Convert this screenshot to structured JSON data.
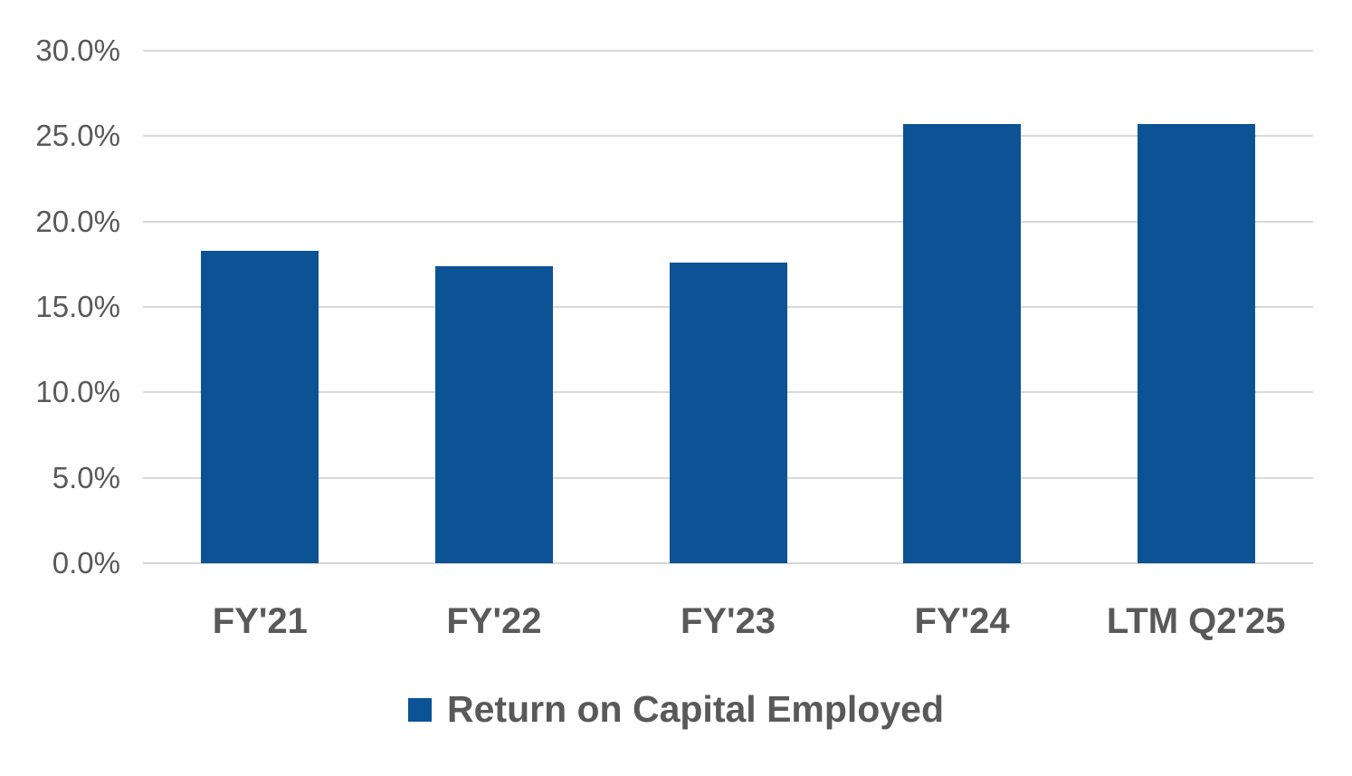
{
  "chart_data": {
    "type": "bar",
    "title": "",
    "categories": [
      "FY'21",
      "FY'22",
      "FY'23",
      "FY'24",
      "LTM Q2'25"
    ],
    "values": [
      18.3,
      17.4,
      17.6,
      25.7,
      25.7
    ],
    "unit": "%",
    "series_name": "Return on Capital Employed",
    "xlabel": "",
    "ylabel": "",
    "ylim": [
      0,
      30
    ],
    "ytick_step": 5,
    "ytick_labels": [
      "0.0%",
      "5.0%",
      "10.0%",
      "15.0%",
      "20.0%",
      "25.0%",
      "30.0%"
    ],
    "grid": true,
    "legend_position": "bottom"
  },
  "legend": {
    "label": "Return on Capital Employed"
  },
  "colors": {
    "bar": "#0B5394",
    "gridline": "#D9D9D9",
    "axis_line": "#D6D6D6",
    "tick_text": "#595959",
    "legend_text": "#595959",
    "background": "#FFFFFF"
  }
}
